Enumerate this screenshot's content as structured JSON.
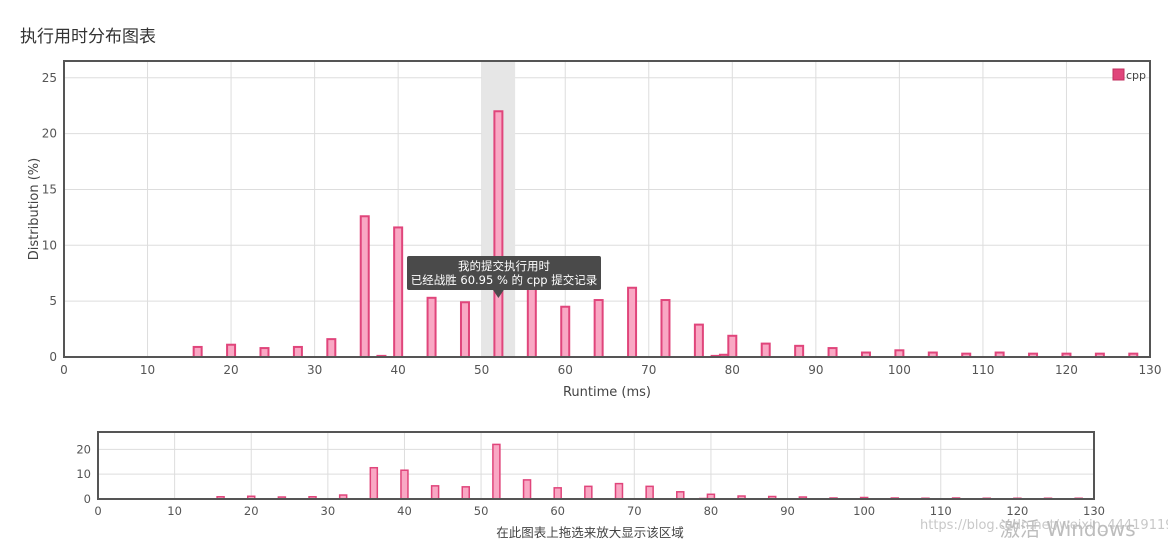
{
  "page": {
    "title": "执行用时分布图表",
    "brush_hint": "在此图表上拖选来放大显示该区域",
    "watermark": "激活 Windows",
    "blog_url": "https://blog.csdn.net/weixin_44419119"
  },
  "tooltip": {
    "line1": "我的提交执行用时",
    "line2": "已经战胜 60.95 % 的 cpp 提交记录"
  },
  "colors": {
    "bar_fill": "#f9a8c4",
    "bar_stroke": "#e0457b",
    "highlight_band": "#e6e6e6",
    "tooltip_bg": "#4a4a4a"
  },
  "chart_data": [
    {
      "type": "bar",
      "title": "",
      "xlabel": "Runtime (ms)",
      "ylabel": "Distribution (%)",
      "xlim": [
        0,
        130
      ],
      "ylim": [
        0,
        26.5
      ],
      "x_ticks": [
        0,
        10,
        20,
        30,
        40,
        50,
        60,
        70,
        80,
        90,
        100,
        110,
        120,
        130
      ],
      "y_ticks": [
        0,
        5,
        10,
        15,
        20,
        25
      ],
      "grid": true,
      "legend": "top-right",
      "highlight_x_range": [
        50,
        54
      ],
      "series": [
        {
          "name": "cpp",
          "x": [
            16,
            20,
            24,
            28,
            32,
            36,
            38,
            40,
            44,
            48,
            52,
            56,
            60,
            64,
            68,
            72,
            76,
            78,
            79,
            80,
            84,
            88,
            92,
            96,
            100,
            104,
            108,
            112,
            116,
            120,
            124,
            128
          ],
          "values": [
            0.9,
            1.1,
            0.8,
            0.9,
            1.6,
            12.6,
            0.1,
            11.6,
            5.3,
            4.9,
            22.0,
            7.7,
            4.5,
            5.1,
            6.2,
            5.1,
            2.9,
            0.1,
            0.2,
            1.9,
            1.2,
            1.0,
            0.8,
            0.4,
            0.6,
            0.4,
            0.3,
            0.4,
            0.3,
            0.3,
            0.3,
            0.3
          ]
        }
      ]
    },
    {
      "type": "bar",
      "title": "",
      "xlabel": "",
      "ylabel": "",
      "xlim": [
        0,
        130
      ],
      "ylim": [
        0,
        27
      ],
      "x_ticks": [
        0,
        10,
        20,
        30,
        40,
        50,
        60,
        70,
        80,
        90,
        100,
        110,
        120,
        130
      ],
      "y_ticks": [
        0,
        10,
        20
      ],
      "grid": true,
      "series": [
        {
          "name": "cpp",
          "x": [
            16,
            20,
            24,
            28,
            32,
            36,
            38,
            40,
            44,
            48,
            52,
            56,
            60,
            64,
            68,
            72,
            76,
            78,
            79,
            80,
            84,
            88,
            92,
            96,
            100,
            104,
            108,
            112,
            116,
            120,
            124,
            128
          ],
          "values": [
            0.9,
            1.1,
            0.8,
            0.9,
            1.6,
            12.6,
            0.1,
            11.6,
            5.3,
            4.9,
            22.0,
            7.7,
            4.5,
            5.1,
            6.2,
            5.1,
            2.9,
            0.1,
            0.2,
            1.9,
            1.2,
            1.0,
            0.8,
            0.4,
            0.6,
            0.4,
            0.3,
            0.4,
            0.3,
            0.3,
            0.3,
            0.3
          ]
        }
      ]
    }
  ]
}
